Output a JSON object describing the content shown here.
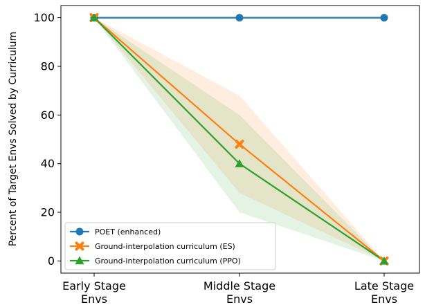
{
  "chart_data": {
    "type": "line",
    "title": "",
    "xlabel": "",
    "ylabel": "Percent of Target Envs Solved by Curriculum",
    "categories": [
      [
        "Early Stage",
        "Envs"
      ],
      [
        "Middle Stage",
        "Envs"
      ],
      [
        "Late Stage",
        "Envs"
      ]
    ],
    "ylim": [
      -5,
      105
    ],
    "yticks": [
      0,
      20,
      40,
      60,
      80,
      100
    ],
    "grid": false,
    "legend_position": "lower-left",
    "series": [
      {
        "name": "POET (enhanced)",
        "values": [
          100,
          100,
          100
        ],
        "color": "#1f77b4",
        "marker": "circle",
        "band": null
      },
      {
        "name": "Ground-interpolation curriculum (ES)",
        "values": [
          100,
          48,
          0
        ],
        "color": "#ff7f0e",
        "marker": "x",
        "band": {
          "lower": [
            100,
            28,
            0
          ],
          "upper": [
            100,
            68,
            0
          ]
        }
      },
      {
        "name": "Ground-interpolation curriculum (PPO)",
        "values": [
          100,
          40,
          0
        ],
        "color": "#2ca02c",
        "marker": "triangle",
        "band": {
          "lower": [
            100,
            20,
            0
          ],
          "upper": [
            100,
            60,
            0
          ]
        }
      }
    ]
  }
}
